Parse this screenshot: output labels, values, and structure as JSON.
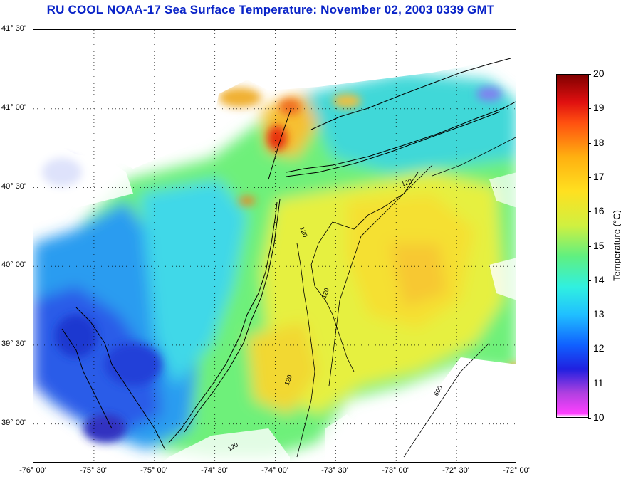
{
  "title": "RU COOL  NOAA-17  Sea Surface Temperature:  November 02, 2003 0339 GMT",
  "map": {
    "lat_labels": [
      "41° 30'",
      "41° 00'",
      "40° 30'",
      "40° 00'",
      "39° 30'",
      "39° 00'"
    ],
    "lon_labels": [
      "-76° 00'",
      "-75° 30'",
      "-75° 00'",
      "-74° 30'",
      "-74° 00'",
      "-73° 30'",
      "-73° 00'",
      "-72° 30'",
      "-72° 00'"
    ],
    "lat_range": [
      38.75,
      41.5
    ],
    "lon_range": [
      -76.0,
      -72.0
    ],
    "contour_labels": [
      "120",
      "120",
      "120",
      "120",
      "120",
      "600"
    ],
    "colors": {
      "coast": "#000000",
      "grid": "#000000",
      "border": "#000000"
    }
  },
  "colorbar": {
    "label": "Temperature (°C)",
    "min": 10,
    "max": 20,
    "ticks": [
      "20",
      "19",
      "18",
      "17",
      "16",
      "15",
      "14",
      "13",
      "12",
      "11",
      "10"
    ]
  }
}
